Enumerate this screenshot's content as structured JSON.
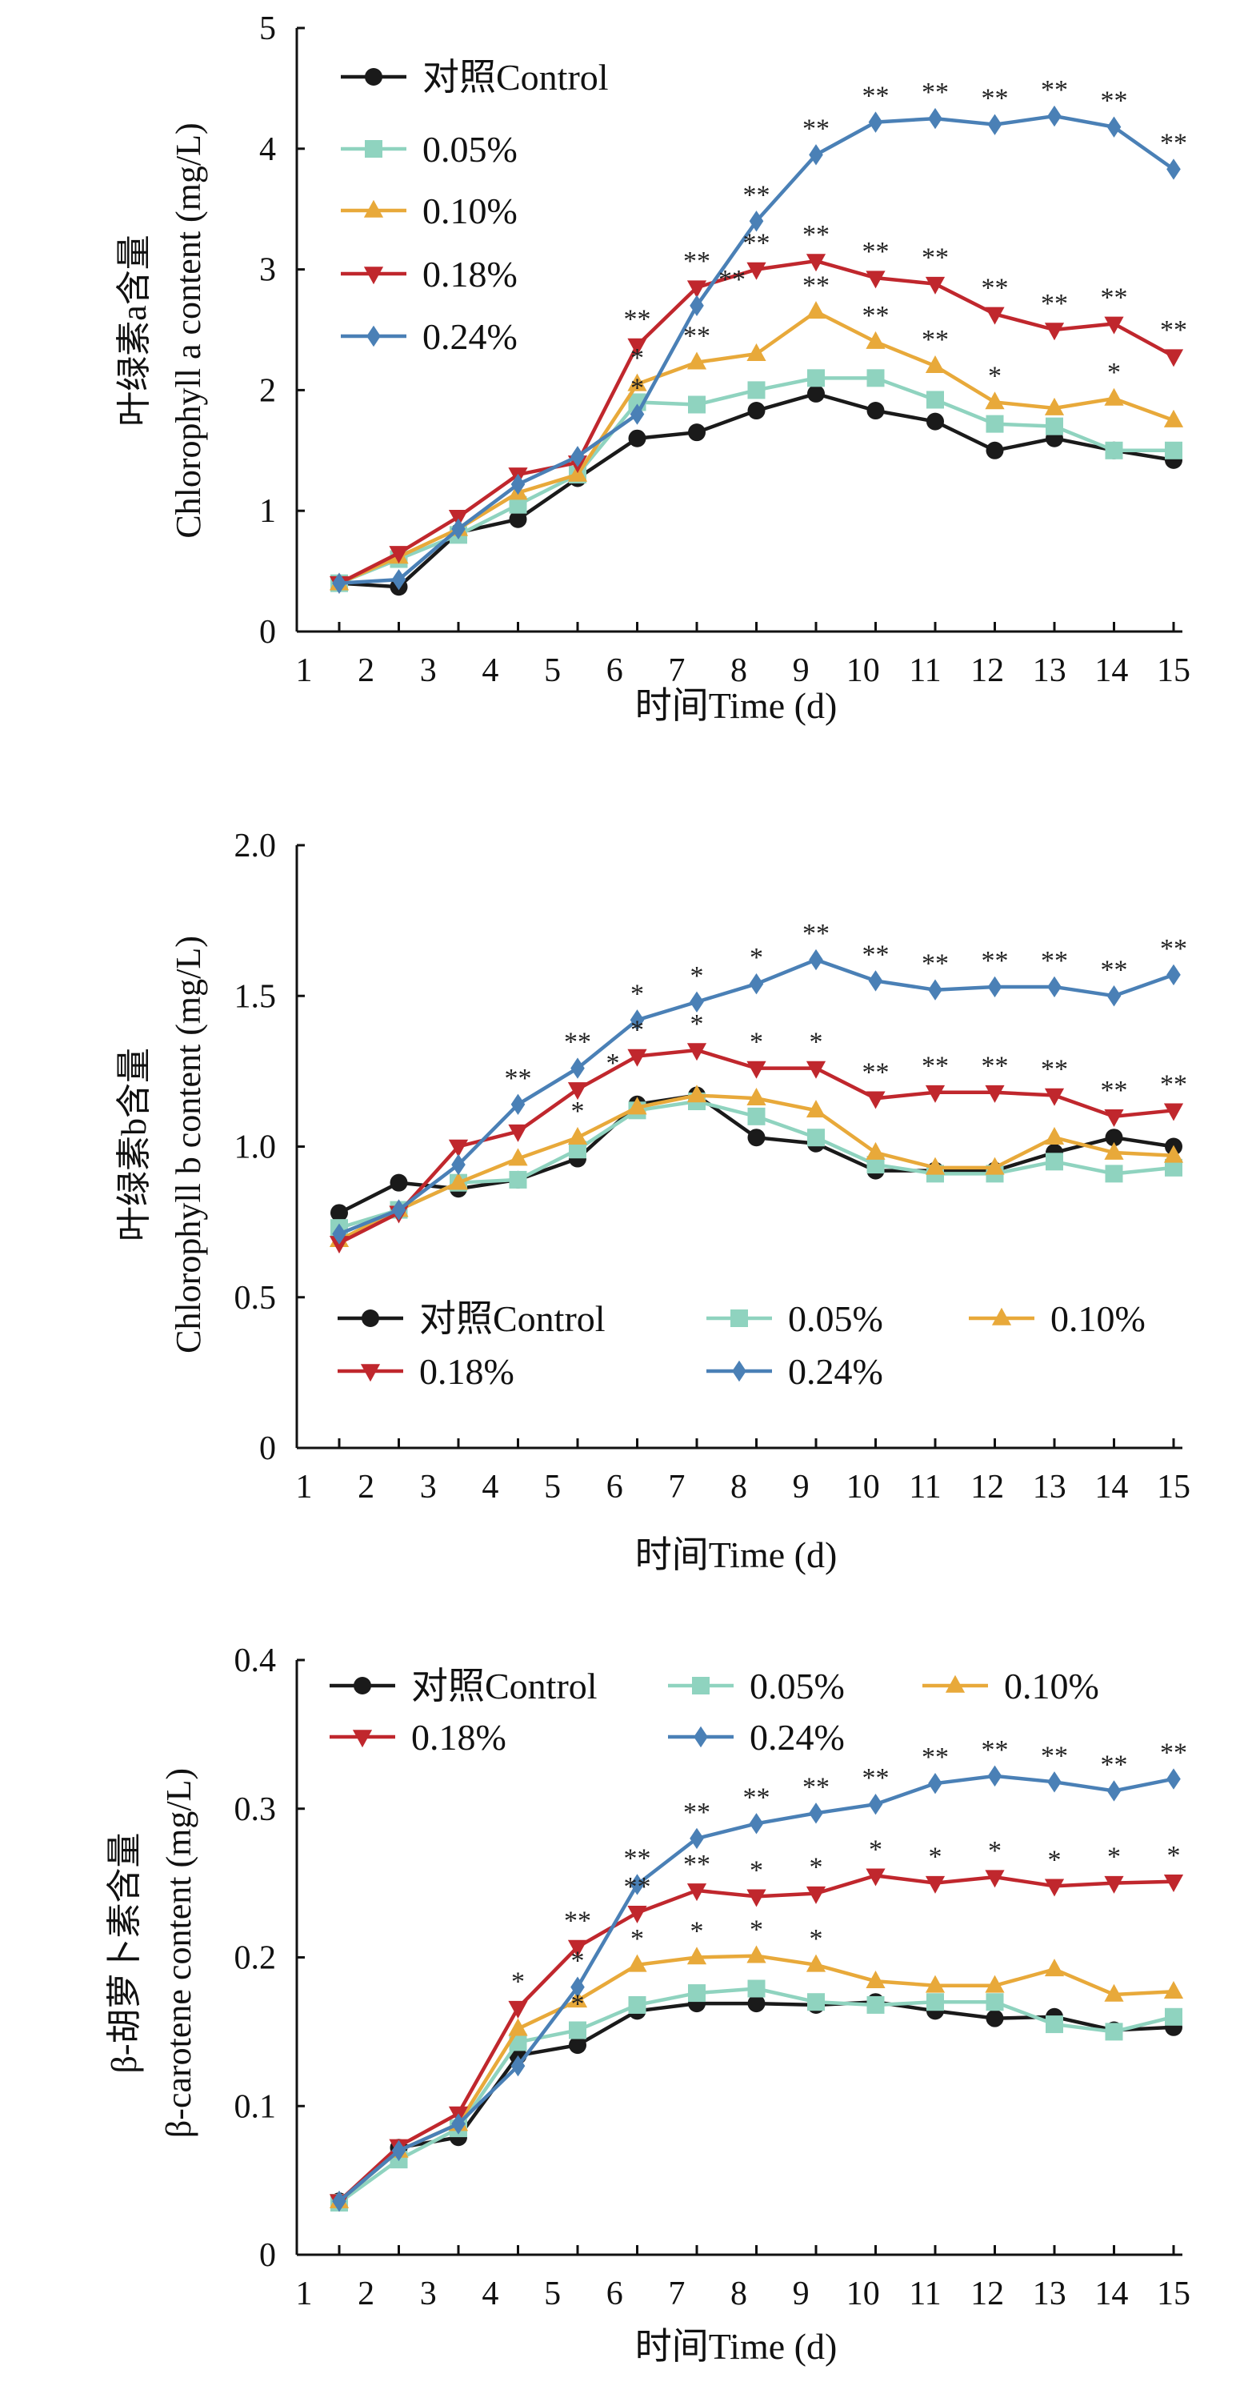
{
  "x_label": "时间Time (d)",
  "x_ticks": [
    "1",
    "2",
    "3",
    "4",
    "5",
    "6",
    "7",
    "8",
    "9",
    "10",
    "11",
    "12",
    "13",
    "14",
    "15"
  ],
  "series_styles": [
    {
      "name": "对照Control",
      "color": "#1a1a1a",
      "marker": "circle"
    },
    {
      "name": "0.05%",
      "color": "#8fd3bf",
      "marker": "square"
    },
    {
      "name": "0.10%",
      "color": "#e8a93a",
      "marker": "triangle-up"
    },
    {
      "name": "0.18%",
      "color": "#c0272d",
      "marker": "triangle-down"
    },
    {
      "name": "0.24%",
      "color": "#4a80b6",
      "marker": "diamond"
    }
  ],
  "chart_data": [
    {
      "type": "line",
      "ylabel_cn": "叶绿素a含量",
      "ylabel_en": "Chlorophyll a content (mg/L)",
      "xlabel": "时间Time (d)",
      "ylim": [
        0,
        5
      ],
      "yticks": [
        "0",
        "1",
        "2",
        "3",
        "4",
        "5"
      ],
      "legend": "top-left, single column",
      "x": [
        1,
        2,
        3,
        4,
        5,
        6,
        7,
        8,
        9,
        10,
        11,
        12,
        13,
        14,
        15
      ],
      "series": [
        {
          "name": "对照Control",
          "values": [
            0.4,
            0.37,
            0.82,
            0.93,
            1.27,
            1.6,
            1.65,
            1.83,
            1.97,
            1.83,
            1.74,
            1.5,
            1.6,
            1.5,
            1.42
          ],
          "sig": [
            "",
            "",
            "",
            "",
            "",
            "",
            "",
            "",
            "",
            "",
            "",
            "",
            "",
            "",
            ""
          ]
        },
        {
          "name": "0.05%",
          "values": [
            0.4,
            0.6,
            0.8,
            1.05,
            1.3,
            1.9,
            1.88,
            2.0,
            2.1,
            2.1,
            1.92,
            1.72,
            1.7,
            1.5,
            1.5
          ],
          "sig": [
            "",
            "",
            "",
            "",
            "",
            "",
            "",
            "",
            "",
            "",
            "",
            "",
            "",
            "",
            ""
          ]
        },
        {
          "name": "0.10%",
          "values": [
            0.4,
            0.62,
            0.85,
            1.15,
            1.3,
            2.05,
            2.23,
            2.3,
            2.65,
            2.4,
            2.2,
            1.9,
            1.85,
            1.93,
            1.75
          ],
          "sig": [
            "",
            "",
            "",
            "",
            "",
            "*",
            "**",
            "",
            "**",
            "**",
            "**",
            "*",
            "",
            "*",
            ""
          ]
        },
        {
          "name": "0.18%",
          "values": [
            0.4,
            0.65,
            0.95,
            1.3,
            1.4,
            2.37,
            2.85,
            3.0,
            3.07,
            2.93,
            2.88,
            2.63,
            2.5,
            2.55,
            2.28
          ],
          "sig": [
            "",
            "",
            "",
            "",
            "",
            "**",
            "**",
            "**",
            "**",
            "**",
            "**",
            "**",
            "**",
            "**",
            "**"
          ]
        },
        {
          "name": "0.24%",
          "values": [
            0.4,
            0.43,
            0.85,
            1.22,
            1.45,
            1.8,
            2.7,
            3.4,
            3.95,
            4.22,
            4.25,
            4.2,
            4.27,
            4.18,
            3.83
          ],
          "sig": [
            "",
            "",
            "",
            "",
            "",
            "*",
            "**",
            "**",
            "**",
            "**",
            "**",
            "**",
            "**",
            "**",
            "**"
          ]
        }
      ]
    },
    {
      "type": "line",
      "ylabel_cn": "叶绿素b含量",
      "ylabel_en": "Chlorophyll b content (mg/L)",
      "xlabel": "时间Time (d)",
      "ylim": [
        0,
        2
      ],
      "yticks": [
        "0",
        "0.5",
        "1.0",
        "1.5",
        "2.0"
      ],
      "legend": "lower-left, three columns",
      "x": [
        1,
        2,
        3,
        4,
        5,
        6,
        7,
        8,
        9,
        10,
        11,
        12,
        13,
        14,
        15
      ],
      "series": [
        {
          "name": "对照Control",
          "values": [
            0.78,
            0.88,
            0.86,
            0.89,
            0.96,
            1.14,
            1.17,
            1.03,
            1.01,
            0.92,
            0.92,
            0.92,
            0.98,
            1.03,
            1.0
          ],
          "sig": [
            "",
            "",
            "",
            "",
            "",
            "",
            "",
            "",
            "",
            "",
            "",
            "",
            "",
            "",
            ""
          ]
        },
        {
          "name": "0.05%",
          "values": [
            0.73,
            0.79,
            0.88,
            0.89,
            0.99,
            1.12,
            1.15,
            1.1,
            1.03,
            0.94,
            0.91,
            0.91,
            0.95,
            0.91,
            0.93
          ],
          "sig": [
            "",
            "",
            "",
            "",
            "",
            "",
            "",
            "",
            "",
            "",
            "",
            "",
            "",
            "",
            ""
          ]
        },
        {
          "name": "0.10%",
          "values": [
            0.69,
            0.79,
            0.88,
            0.96,
            1.03,
            1.13,
            1.17,
            1.16,
            1.12,
            0.98,
            0.93,
            0.93,
            1.03,
            0.98,
            0.97
          ],
          "sig": [
            "",
            "",
            "",
            "",
            "*",
            "",
            "",
            "",
            "",
            "",
            "",
            "",
            "",
            "",
            ""
          ]
        },
        {
          "name": "0.18%",
          "values": [
            0.68,
            0.78,
            1.0,
            1.05,
            1.19,
            1.3,
            1.32,
            1.26,
            1.26,
            1.16,
            1.18,
            1.18,
            1.17,
            1.1,
            1.12
          ],
          "sig": [
            "",
            "",
            "",
            "",
            "*",
            "*",
            "*",
            "*",
            "*",
            "**",
            "**",
            "**",
            "**",
            "**",
            "**"
          ]
        },
        {
          "name": "0.24%",
          "values": [
            0.71,
            0.79,
            0.94,
            1.14,
            1.26,
            1.42,
            1.48,
            1.54,
            1.62,
            1.55,
            1.52,
            1.53,
            1.53,
            1.5,
            1.57
          ],
          "sig": [
            "",
            "",
            "",
            "**",
            "**",
            "*",
            "*",
            "*",
            "**",
            "**",
            "**",
            "**",
            "**",
            "**",
            "**"
          ]
        }
      ]
    },
    {
      "type": "line",
      "ylabel_cn": "β-胡萝卜素含量",
      "ylabel_en": "β-carotene content (mg/L)",
      "xlabel": "时间Time (d)",
      "ylim": [
        0,
        0.4
      ],
      "yticks": [
        "0",
        "0.1",
        "0.2",
        "0.3",
        "0.4"
      ],
      "legend": "top-left, three columns",
      "x": [
        1,
        2,
        3,
        4,
        5,
        6,
        7,
        8,
        9,
        10,
        11,
        12,
        13,
        14,
        15
      ],
      "series": [
        {
          "name": "对照Control",
          "values": [
            0.036,
            0.072,
            0.079,
            0.134,
            0.141,
            0.164,
            0.169,
            0.169,
            0.168,
            0.17,
            0.164,
            0.159,
            0.16,
            0.151,
            0.153
          ],
          "sig": [
            "",
            "",
            "",
            "",
            "",
            "",
            "",
            "",
            "",
            "",
            "",
            "",
            "",
            "",
            ""
          ]
        },
        {
          "name": "0.05%",
          "values": [
            0.035,
            0.064,
            0.085,
            0.143,
            0.151,
            0.168,
            0.176,
            0.179,
            0.17,
            0.168,
            0.17,
            0.17,
            0.155,
            0.15,
            0.16
          ],
          "sig": [
            "",
            "",
            "",
            "",
            "*",
            "",
            "",
            "",
            "",
            "",
            "",
            "",
            "",
            "",
            ""
          ]
        },
        {
          "name": "0.10%",
          "values": [
            0.036,
            0.07,
            0.088,
            0.152,
            0.171,
            0.195,
            0.2,
            0.201,
            0.195,
            0.184,
            0.181,
            0.181,
            0.192,
            0.175,
            0.177
          ],
          "sig": [
            "",
            "",
            "",
            "",
            "",
            "*",
            "*",
            "*",
            "*",
            "",
            "",
            "",
            "",
            "",
            ""
          ]
        },
        {
          "name": "0.18%",
          "values": [
            0.036,
            0.073,
            0.095,
            0.166,
            0.207,
            0.23,
            0.245,
            0.241,
            0.243,
            0.255,
            0.25,
            0.254,
            0.248,
            0.25,
            0.251
          ],
          "sig": [
            "",
            "",
            "",
            "*",
            "**",
            "**",
            "**",
            "*",
            "*",
            "*",
            "*",
            "*",
            "*",
            "*",
            "*"
          ]
        },
        {
          "name": "0.24%",
          "values": [
            0.036,
            0.07,
            0.088,
            0.127,
            0.18,
            0.249,
            0.28,
            0.29,
            0.297,
            0.303,
            0.317,
            0.322,
            0.318,
            0.312,
            0.32
          ],
          "sig": [
            "",
            "",
            "",
            "",
            "*",
            "**",
            "**",
            "**",
            "**",
            "**",
            "**",
            "**",
            "**",
            "**",
            "**"
          ]
        }
      ]
    }
  ]
}
